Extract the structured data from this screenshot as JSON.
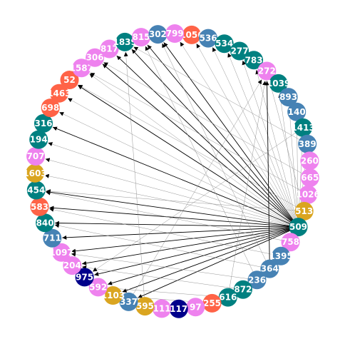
{
  "diagram": {
    "type": "circular-directed-graph",
    "nodes": [
      {
        "id": "1056",
        "color": "#ff6347"
      },
      {
        "id": "536",
        "color": "#4682b4"
      },
      {
        "id": "534",
        "color": "#008080"
      },
      {
        "id": "277",
        "color": "#008080"
      },
      {
        "id": "783",
        "color": "#008080"
      },
      {
        "id": "272",
        "color": "#ee82ee"
      },
      {
        "id": "1039",
        "color": "#008080"
      },
      {
        "id": "893",
        "color": "#4682b4"
      },
      {
        "id": "140",
        "color": "#4682b4"
      },
      {
        "id": "1413",
        "color": "#008080"
      },
      {
        "id": "389",
        "color": "#4682b4"
      },
      {
        "id": "260",
        "color": "#ee82ee"
      },
      {
        "id": "665",
        "color": "#ee82ee"
      },
      {
        "id": "1026",
        "color": "#ee82ee"
      },
      {
        "id": "513",
        "color": "#daa520"
      },
      {
        "id": "509",
        "color": "#008080"
      },
      {
        "id": "758",
        "color": "#ee82ee"
      },
      {
        "id": "1395",
        "color": "#4682b4"
      },
      {
        "id": "364",
        "color": "#4682b4"
      },
      {
        "id": "236",
        "color": "#4682b4"
      },
      {
        "id": "872",
        "color": "#008080"
      },
      {
        "id": "616",
        "color": "#008080"
      },
      {
        "id": "255",
        "color": "#ff6347"
      },
      {
        "id": "97",
        "color": "#ee82ee"
      },
      {
        "id": "117",
        "color": "#00008b"
      },
      {
        "id": "111",
        "color": "#ee82ee"
      },
      {
        "id": "595",
        "color": "#daa520"
      },
      {
        "id": "337",
        "color": "#4682b4"
      },
      {
        "id": "1103",
        "color": "#daa520"
      },
      {
        "id": "592",
        "color": "#ee82ee"
      },
      {
        "id": "975",
        "color": "#00008b"
      },
      {
        "id": "204",
        "color": "#ee82ee"
      },
      {
        "id": "1097",
        "color": "#ee82ee"
      },
      {
        "id": "711",
        "color": "#4682b4"
      },
      {
        "id": "840",
        "color": "#008080"
      },
      {
        "id": "583",
        "color": "#ff6347"
      },
      {
        "id": "454",
        "color": "#008080"
      },
      {
        "id": "1603",
        "color": "#daa520"
      },
      {
        "id": "707",
        "color": "#ee82ee"
      },
      {
        "id": "194",
        "color": "#008080"
      },
      {
        "id": "316",
        "color": "#008080"
      },
      {
        "id": "698",
        "color": "#ff6347"
      },
      {
        "id": "1463",
        "color": "#ff6347"
      },
      {
        "id": "52",
        "color": "#ff6347"
      },
      {
        "id": "1587",
        "color": "#ee82ee"
      },
      {
        "id": "306",
        "color": "#ee82ee"
      },
      {
        "id": "817",
        "color": "#ee82ee"
      },
      {
        "id": "1839",
        "color": "#008080"
      },
      {
        "id": "815",
        "color": "#ee82ee"
      },
      {
        "id": "302",
        "color": "#4682b4"
      },
      {
        "id": "799",
        "color": "#ee82ee"
      }
    ],
    "edges": [
      {
        "from": "509",
        "to": "302",
        "style": "bold"
      },
      {
        "from": "509",
        "to": "815",
        "style": "bold"
      },
      {
        "from": "509",
        "to": "1839",
        "style": "bold"
      },
      {
        "from": "509",
        "to": "817",
        "style": "bold"
      },
      {
        "from": "509",
        "to": "306",
        "style": "bold"
      },
      {
        "from": "509",
        "to": "52",
        "style": "bold"
      },
      {
        "from": "509",
        "to": "316",
        "style": "bold"
      },
      {
        "from": "509",
        "to": "454",
        "style": "bold"
      },
      {
        "from": "509",
        "to": "583",
        "style": "bold"
      },
      {
        "from": "509",
        "to": "840",
        "style": "bold"
      },
      {
        "from": "509",
        "to": "1097",
        "style": "bold"
      },
      {
        "from": "509",
        "to": "592",
        "style": "bold"
      },
      {
        "from": "509",
        "to": "337",
        "style": "bold"
      },
      {
        "from": "509",
        "to": "1103",
        "style": "bold"
      },
      {
        "from": "509",
        "to": "204",
        "style": "bold"
      },
      {
        "from": "509",
        "to": "975",
        "style": "bold"
      },
      {
        "from": "509",
        "to": "711",
        "style": "bold"
      },
      {
        "from": "509",
        "to": "799",
        "style": "thin"
      },
      {
        "from": "509",
        "to": "1056",
        "style": "thin"
      },
      {
        "from": "509",
        "to": "536",
        "style": "thin"
      },
      {
        "from": "509",
        "to": "534",
        "style": "thin"
      },
      {
        "from": "509",
        "to": "277",
        "style": "thin"
      },
      {
        "from": "509",
        "to": "783",
        "style": "thin"
      },
      {
        "from": "509",
        "to": "1039",
        "style": "thin"
      },
      {
        "from": "509",
        "to": "893",
        "style": "thin"
      },
      {
        "from": "509",
        "to": "140",
        "style": "thin"
      },
      {
        "from": "509",
        "to": "1413",
        "style": "thin"
      },
      {
        "from": "509",
        "to": "389",
        "style": "thin"
      },
      {
        "from": "509",
        "to": "1587",
        "style": "thin"
      },
      {
        "from": "509",
        "to": "1463",
        "style": "thin"
      },
      {
        "from": "509",
        "to": "698",
        "style": "thin"
      },
      {
        "from": "509",
        "to": "194",
        "style": "thin"
      },
      {
        "from": "509",
        "to": "707",
        "style": "thin"
      },
      {
        "from": "509",
        "to": "1603",
        "style": "thin"
      },
      {
        "from": "513",
        "to": "272",
        "style": "thin"
      },
      {
        "from": "513",
        "to": "454",
        "style": "thin"
      },
      {
        "from": "513",
        "to": "52",
        "style": "thin"
      },
      {
        "from": "1026",
        "to": "1587",
        "style": "thin"
      },
      {
        "from": "665",
        "to": "306",
        "style": "thin"
      },
      {
        "from": "389",
        "to": "1839",
        "style": "thin"
      },
      {
        "from": "758",
        "to": "454",
        "style": "thin"
      },
      {
        "from": "1395",
        "to": "583",
        "style": "thin"
      },
      {
        "from": "364",
        "to": "272",
        "style": "bold"
      },
      {
        "from": "364",
        "to": "840",
        "style": "thin"
      },
      {
        "from": "364",
        "to": "302",
        "style": "thin"
      },
      {
        "from": "236",
        "to": "1097",
        "style": "thin"
      },
      {
        "from": "236",
        "to": "815",
        "style": "thin"
      },
      {
        "from": "616",
        "to": "592",
        "style": "thin"
      },
      {
        "from": "616",
        "to": "272",
        "style": "thin"
      },
      {
        "from": "255",
        "to": "1103",
        "style": "thin"
      },
      {
        "from": "872",
        "to": "204",
        "style": "thin"
      },
      {
        "from": "337",
        "to": "272",
        "style": "thin"
      },
      {
        "from": "111",
        "to": "337",
        "style": "thin"
      },
      {
        "from": "595",
        "to": "1839",
        "style": "thin"
      },
      {
        "from": "97",
        "to": "337",
        "style": "thin"
      },
      {
        "from": "1413",
        "to": "975",
        "style": "thin"
      }
    ]
  }
}
